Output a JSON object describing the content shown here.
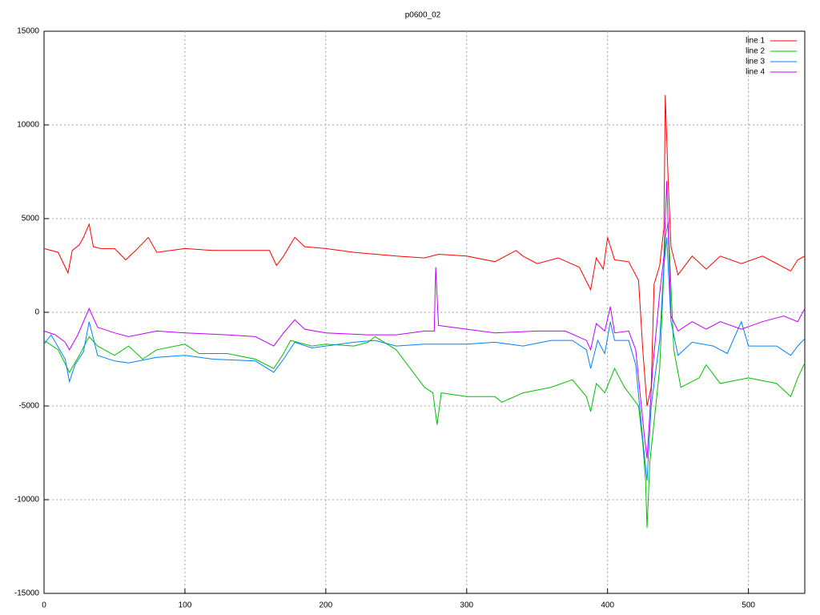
{
  "chart_data": {
    "type": "line",
    "title": "p0600_02",
    "xlim": [
      0,
      540
    ],
    "xticks": [
      0,
      100,
      200,
      300,
      400,
      500
    ],
    "ylim": [
      -15000,
      15000
    ],
    "yticks": [
      -15000,
      -10000,
      -5000,
      0,
      5000,
      10000,
      15000
    ],
    "grid": true,
    "legend": "top-right",
    "series": [
      {
        "name": "line 1",
        "color": "#ff0000",
        "x": [
          0,
          10,
          17,
          20,
          25,
          28,
          32,
          35,
          40,
          50,
          58,
          65,
          74,
          80,
          100,
          120,
          140,
          160,
          165,
          170,
          178,
          185,
          200,
          220,
          250,
          270,
          280,
          300,
          320,
          335,
          340,
          350,
          365,
          380,
          388,
          392,
          397,
          400,
          405,
          415,
          422,
          425,
          428,
          431,
          433,
          437,
          440,
          441,
          443,
          445,
          450,
          460,
          470,
          480,
          495,
          510,
          530,
          535,
          540
        ],
        "values": [
          3400,
          3200,
          2100,
          3300,
          3600,
          4000,
          4700,
          3500,
          3400,
          3400,
          2800,
          3300,
          4000,
          3200,
          3400,
          3300,
          3300,
          3300,
          2500,
          3000,
          4000,
          3500,
          3400,
          3200,
          3000,
          2900,
          3100,
          3000,
          2700,
          3300,
          3000,
          2600,
          2900,
          2400,
          1200,
          2900,
          2300,
          4000,
          2800,
          2700,
          1700,
          -2000,
          -5000,
          -4000,
          1500,
          2500,
          4500,
          11600,
          7000,
          3500,
          2000,
          3000,
          2300,
          3000,
          2600,
          3000,
          2200,
          2800,
          3000
        ]
      },
      {
        "name": "line 2",
        "color": "#00c000",
        "x": [
          0,
          10,
          18,
          25,
          32,
          38,
          50,
          60,
          70,
          80,
          100,
          110,
          130,
          150,
          163,
          170,
          175,
          190,
          200,
          220,
          230,
          235,
          250,
          260,
          270,
          276,
          279,
          282,
          300,
          320,
          325,
          340,
          360,
          375,
          385,
          388,
          392,
          398,
          405,
          412,
          422,
          425,
          427,
          428,
          430,
          437,
          441,
          443,
          447,
          452,
          465,
          470,
          480,
          500,
          520,
          530,
          535,
          540
        ],
        "values": [
          -1500,
          -2000,
          -3200,
          -2300,
          -1300,
          -1800,
          -2300,
          -1800,
          -2500,
          -2000,
          -1700,
          -2200,
          -2200,
          -2500,
          -3000,
          -2200,
          -1500,
          -1800,
          -1700,
          -1800,
          -1600,
          -1300,
          -2000,
          -3000,
          -4000,
          -4300,
          -6000,
          -4300,
          -4500,
          -4500,
          -4800,
          -4300,
          -4000,
          -3600,
          -4500,
          -5300,
          -3800,
          -4300,
          -3000,
          -4000,
          -5000,
          -7000,
          -9000,
          -11500,
          -8000,
          -3000,
          4000,
          4800,
          -2000,
          -4000,
          -3500,
          -2800,
          -3800,
          -3500,
          -3800,
          -4500,
          -3500,
          -2700
        ]
      },
      {
        "name": "line 3",
        "color": "#0080ff",
        "x": [
          0,
          5,
          15,
          18,
          22,
          28,
          32,
          38,
          50,
          60,
          80,
          100,
          120,
          150,
          163,
          170,
          178,
          190,
          200,
          220,
          235,
          250,
          270,
          300,
          320,
          340,
          360,
          375,
          385,
          388,
          393,
          398,
          402,
          405,
          415,
          420,
          424,
          426,
          428,
          431,
          437,
          440,
          442,
          445,
          450,
          460,
          475,
          485,
          495,
          500,
          520,
          530,
          535,
          540
        ],
        "values": [
          -1700,
          -1200,
          -2500,
          -3700,
          -2800,
          -2100,
          -500,
          -2300,
          -2600,
          -2700,
          -2400,
          -2300,
          -2500,
          -2600,
          -3200,
          -2500,
          -1600,
          -1900,
          -1800,
          -1600,
          -1500,
          -1800,
          -1700,
          -1700,
          -1600,
          -1800,
          -1500,
          -1500,
          -2000,
          -3000,
          -1500,
          -2200,
          -500,
          -1500,
          -1500,
          -2800,
          -6000,
          -7500,
          -9000,
          -5000,
          -1500,
          2500,
          4000,
          -500,
          -2300,
          -1600,
          -1800,
          -2200,
          -500,
          -1800,
          -1800,
          -2300,
          -1800,
          -1400
        ]
      },
      {
        "name": "line 4",
        "color": "#c000ff",
        "x": [
          0,
          8,
          15,
          18,
          24,
          32,
          38,
          50,
          60,
          80,
          100,
          130,
          150,
          163,
          170,
          178,
          185,
          200,
          230,
          250,
          270,
          277,
          278,
          280,
          300,
          320,
          350,
          370,
          385,
          388,
          392,
          398,
          402,
          405,
          415,
          420,
          424,
          426,
          428,
          432,
          437,
          440,
          442,
          445,
          450,
          460,
          470,
          480,
          495,
          510,
          525,
          535,
          540
        ],
        "values": [
          -1000,
          -1200,
          -1600,
          -2000,
          -1200,
          200,
          -800,
          -1100,
          -1300,
          -1000,
          -1100,
          -1200,
          -1300,
          -1800,
          -1100,
          -400,
          -900,
          -1100,
          -1200,
          -1200,
          -1000,
          -1000,
          2400,
          -700,
          -900,
          -1100,
          -1000,
          -1000,
          -1500,
          -2000,
          -600,
          -1000,
          300,
          -1100,
          -1000,
          -2000,
          -5000,
          -6500,
          -7800,
          -3000,
          1000,
          3000,
          7000,
          -200,
          -1000,
          -500,
          -900,
          -500,
          -900,
          -500,
          -200,
          -500,
          200
        ]
      }
    ]
  }
}
